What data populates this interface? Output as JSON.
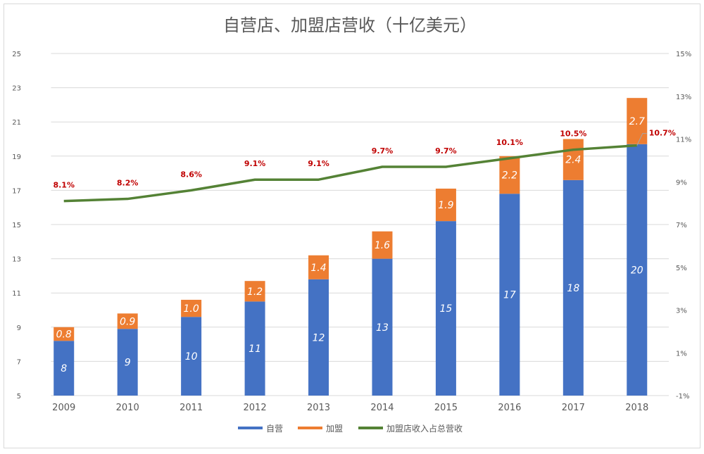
{
  "chart_data": {
    "type": "bar",
    "title": "自营店、加盟店营收（十亿美元）",
    "categories": [
      "2009",
      "2010",
      "2011",
      "2012",
      "2013",
      "2014",
      "2015",
      "2016",
      "2017",
      "2018"
    ],
    "series": [
      {
        "name": "自营",
        "kind": "stacked-bar",
        "axis": "left",
        "color": "#4472c4",
        "values": [
          8.2,
          8.9,
          9.6,
          10.5,
          11.8,
          13.0,
          15.2,
          16.8,
          17.6,
          19.7
        ],
        "labels": [
          "8",
          "9",
          "10",
          "11",
          "12",
          "13",
          "15",
          "17",
          "18",
          "20"
        ]
      },
      {
        "name": "加盟",
        "kind": "stacked-bar",
        "axis": "left",
        "color": "#ed7d31",
        "values": [
          0.8,
          0.9,
          1.0,
          1.2,
          1.4,
          1.6,
          1.9,
          2.2,
          2.4,
          2.7
        ],
        "labels": [
          "0.8",
          "0.9",
          "1.0",
          "1.2",
          "1.4",
          "1.6",
          "1.9",
          "2.2",
          "2.4",
          "2.7"
        ]
      },
      {
        "name": "加盟店收入占总营收",
        "kind": "line",
        "axis": "right",
        "color": "#548235",
        "values": [
          8.1,
          8.2,
          8.6,
          9.1,
          9.1,
          9.7,
          9.7,
          10.1,
          10.5,
          10.7
        ],
        "labels": [
          "8.1%",
          "8.2%",
          "8.6%",
          "9.1%",
          "9.1%",
          "9.7%",
          "9.7%",
          "10.1%",
          "10.5%",
          "10.7%"
        ],
        "label_color": "#c00000"
      }
    ],
    "y_left": {
      "range": [
        5,
        25
      ],
      "ticks": [
        "5",
        "7",
        "9",
        "11",
        "13",
        "15",
        "17",
        "19",
        "21",
        "23",
        "25"
      ]
    },
    "y_right": {
      "range": [
        -1,
        15
      ],
      "unit": "%",
      "ticks": [
        "-1%",
        "1%",
        "3%",
        "5%",
        "7%",
        "9%",
        "11%",
        "13%",
        "15%"
      ]
    },
    "grid": true,
    "legend": "bottom"
  }
}
